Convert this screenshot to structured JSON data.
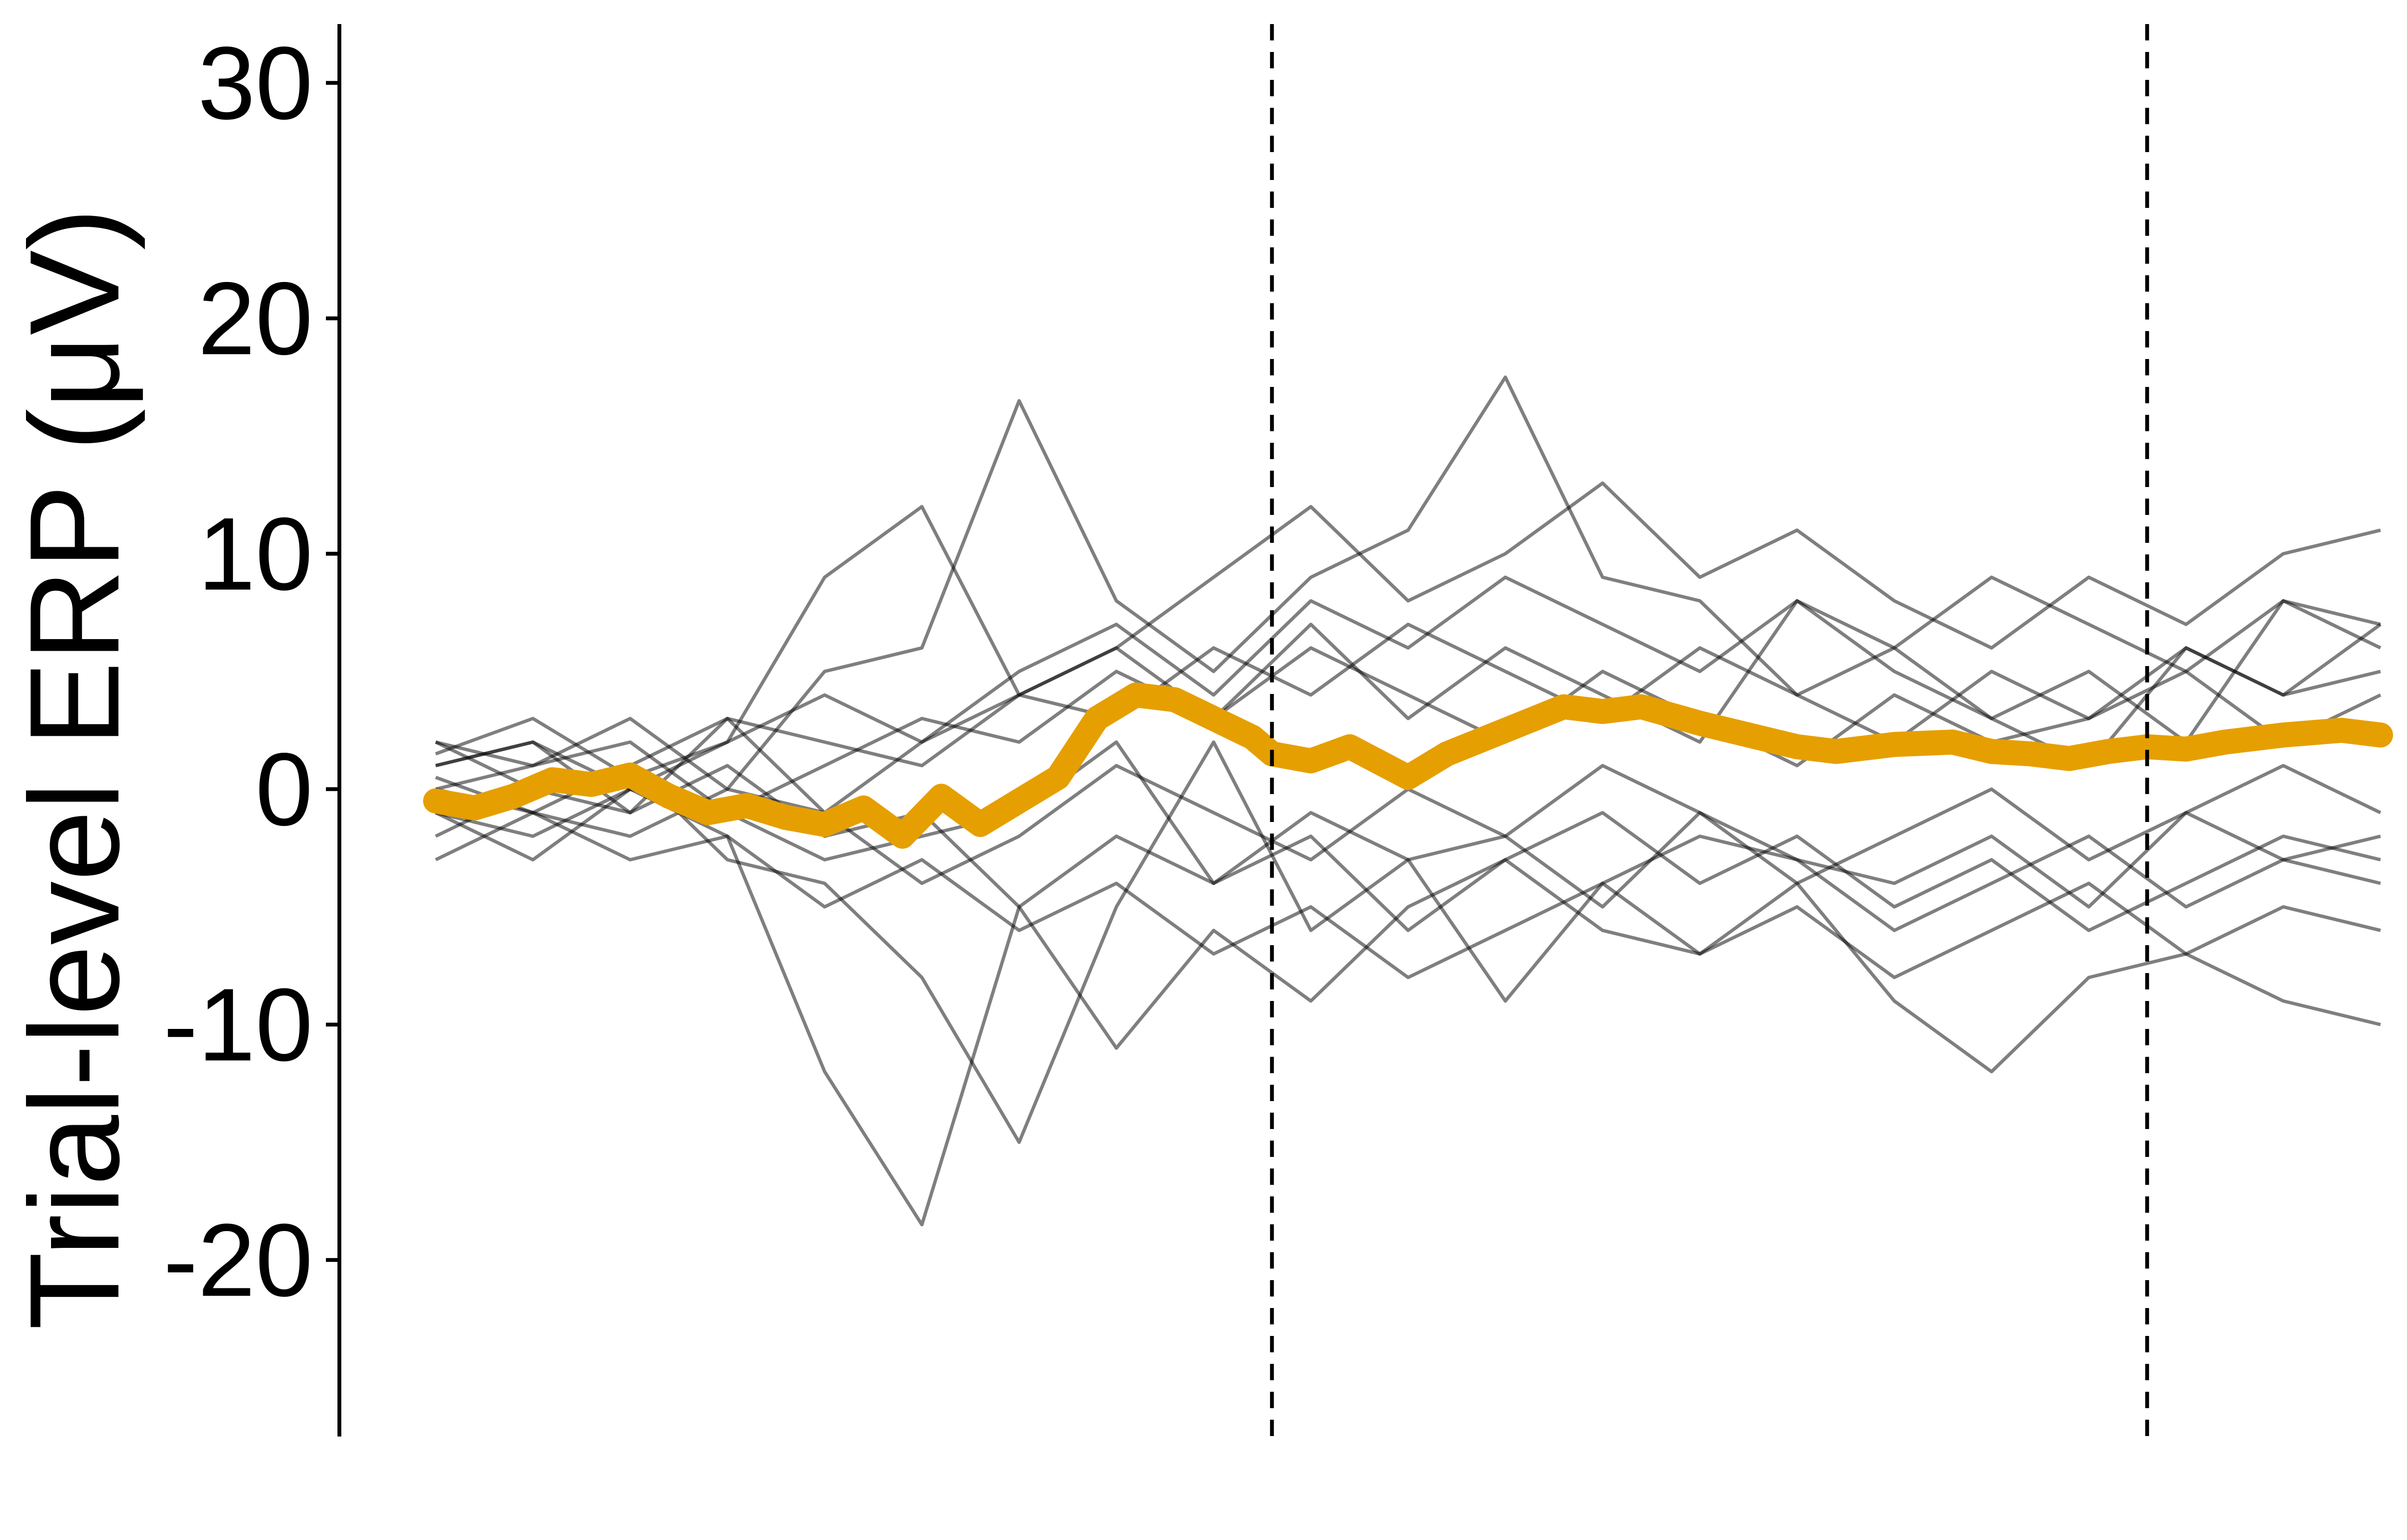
{
  "chart_data": {
    "type": "line",
    "title": "",
    "xlabel": "",
    "ylabel": "Trial-level ERP (μV)",
    "ylim": [
      -27.5,
      32.5
    ],
    "yticks": [
      30,
      20,
      10,
      0,
      -10,
      -20
    ],
    "ytick_labels": [
      "30",
      "20",
      "10",
      "0",
      "-10",
      "-20"
    ],
    "xlim": [
      0,
      100
    ],
    "vlines": [
      43,
      88
    ],
    "grid": false,
    "legend": "none",
    "colors": {
      "trials": "#000000",
      "mean": "#E69F00",
      "axis": "#000000"
    },
    "series": [
      {
        "role": "trial",
        "x": [
          0,
          5,
          10,
          15,
          20,
          25,
          30,
          35,
          40,
          45,
          50,
          55,
          60,
          65,
          70,
          75,
          80,
          85,
          90,
          95,
          100
        ],
        "values": [
          1.5,
          3,
          0.5,
          2,
          9,
          12,
          4,
          6,
          3,
          7,
          3,
          6,
          4,
          2,
          8,
          5,
          3,
          1,
          6,
          4,
          7
        ]
      },
      {
        "role": "trial",
        "x": [
          0,
          5,
          10,
          15,
          20,
          25,
          30,
          35,
          40,
          45,
          50,
          55,
          60,
          65,
          70,
          75,
          80,
          85,
          90,
          95,
          100
        ],
        "values": [
          -1,
          -3,
          0,
          -2,
          -12,
          -18.5,
          -5,
          -2,
          -4,
          -1,
          -3,
          -2,
          -5,
          -1,
          -3,
          -4,
          -2,
          -5,
          -1,
          -3,
          -2
        ]
      },
      {
        "role": "trial",
        "x": [
          0,
          5,
          10,
          15,
          20,
          25,
          30,
          35,
          40,
          45,
          50,
          55,
          60,
          65,
          70,
          75,
          80,
          85,
          90,
          95,
          100
        ],
        "values": [
          0.5,
          -1,
          1,
          -3,
          -4,
          -8,
          -15,
          -5,
          2,
          -6,
          -3,
          -9,
          -4,
          -2,
          -3,
          -6,
          -4,
          -2,
          -5,
          -3,
          -4
        ]
      },
      {
        "role": "trial",
        "x": [
          0,
          5,
          10,
          15,
          20,
          25,
          30,
          35,
          40,
          45,
          50,
          55,
          60,
          65,
          70,
          75,
          80,
          85,
          90,
          95,
          100
        ],
        "values": [
          2,
          1,
          3,
          0,
          5,
          6,
          16.5,
          8,
          5,
          9,
          11,
          17.5,
          9,
          8,
          4,
          6,
          3,
          5,
          2,
          8,
          6
        ]
      },
      {
        "role": "trial",
        "x": [
          0,
          5,
          10,
          15,
          20,
          25,
          30,
          35,
          40,
          45,
          50,
          55,
          60,
          65,
          70,
          75,
          80,
          85,
          90,
          95,
          100
        ],
        "values": [
          -2,
          0,
          -1,
          1,
          -2,
          -1,
          -5,
          -11,
          -6,
          -9,
          -5,
          -3,
          -6,
          -7,
          -4,
          -9,
          -12,
          -8,
          -7,
          -9,
          -10
        ]
      },
      {
        "role": "trial",
        "x": [
          0,
          5,
          10,
          15,
          20,
          25,
          30,
          35,
          40,
          45,
          50,
          55,
          60,
          65,
          70,
          75,
          80,
          85,
          90,
          95,
          100
        ],
        "values": [
          1,
          2,
          -1,
          3,
          2,
          1,
          4,
          6,
          9,
          12,
          8,
          10,
          13,
          9,
          11,
          8,
          6,
          9,
          7,
          10,
          11
        ]
      },
      {
        "role": "trial",
        "x": [
          0,
          5,
          10,
          15,
          20,
          25,
          30,
          35,
          40,
          45,
          50,
          55,
          60,
          65,
          70,
          75,
          80,
          85,
          90,
          95,
          100
        ],
        "values": [
          -1,
          -2,
          0,
          -1,
          -3,
          -2,
          -1,
          2,
          -4,
          -2,
          -6,
          -3,
          -1,
          -4,
          -2,
          -5,
          -3,
          -6,
          -4,
          -2,
          -3
        ]
      },
      {
        "role": "trial",
        "x": [
          0,
          5,
          10,
          15,
          20,
          25,
          30,
          35,
          40,
          45,
          50,
          55,
          60,
          65,
          70,
          75,
          80,
          85,
          90,
          95,
          100
        ],
        "values": [
          0,
          1,
          2,
          -1,
          1,
          3,
          2,
          5,
          3,
          6,
          4,
          2,
          5,
          3,
          1,
          4,
          2,
          3,
          5,
          2,
          4
        ]
      },
      {
        "role": "trial",
        "x": [
          0,
          5,
          10,
          15,
          20,
          25,
          30,
          35,
          40,
          45,
          50,
          55,
          60,
          65,
          70,
          75,
          80,
          85,
          90,
          95,
          100
        ],
        "values": [
          -3,
          -1,
          -2,
          0,
          -1,
          -4,
          -2,
          1,
          -1,
          -3,
          0,
          -2,
          1,
          -1,
          -4,
          -2,
          0,
          -3,
          -1,
          1,
          -1
        ]
      },
      {
        "role": "trial",
        "x": [
          0,
          5,
          10,
          15,
          20,
          25,
          30,
          35,
          40,
          45,
          50,
          55,
          60,
          65,
          70,
          75,
          80,
          85,
          90,
          95,
          100
        ],
        "values": [
          2,
          0,
          1,
          3,
          -1,
          2,
          4,
          3,
          6,
          4,
          7,
          5,
          3,
          6,
          4,
          2,
          5,
          3,
          6,
          4,
          5
        ]
      },
      {
        "role": "trial",
        "x": [
          0,
          5,
          10,
          15,
          20,
          25,
          30,
          35,
          40,
          45,
          50,
          55,
          60,
          65,
          70,
          75,
          80,
          85,
          90,
          95,
          100
        ],
        "values": [
          0,
          -1,
          -3,
          -2,
          -5,
          -3,
          -6,
          -4,
          -7,
          -5,
          -8,
          -6,
          -4,
          -7,
          -5,
          -8,
          -6,
          -4,
          -7,
          -5,
          -6
        ]
      },
      {
        "role": "trial",
        "x": [
          0,
          5,
          10,
          15,
          20,
          25,
          30,
          35,
          40,
          45,
          50,
          55,
          60,
          65,
          70,
          75,
          80,
          85,
          90,
          95,
          100
        ],
        "values": [
          1,
          2,
          0,
          2,
          4,
          2,
          5,
          7,
          4,
          8,
          6,
          9,
          7,
          5,
          8,
          6,
          9,
          7,
          5,
          8,
          7
        ]
      },
      {
        "role": "mean",
        "x": [
          0,
          2,
          4,
          6,
          8,
          10,
          12,
          14,
          16,
          18,
          20,
          22,
          24,
          26,
          28,
          30,
          32,
          34,
          36,
          38,
          40,
          42,
          43,
          45,
          47,
          50,
          52,
          55,
          58,
          60,
          62,
          65,
          68,
          70,
          72,
          75,
          78,
          80,
          82,
          84,
          86,
          88,
          90,
          92,
          95,
          98,
          100
        ],
        "values": [
          -0.5,
          -0.8,
          -0.3,
          0.4,
          0.2,
          0.6,
          -0.3,
          -1,
          -0.7,
          -1.2,
          -1.5,
          -0.8,
          -2,
          -0.3,
          -1.5,
          -0.5,
          0.5,
          3,
          4,
          3.8,
          3,
          2.2,
          1.5,
          1.2,
          1.8,
          0.5,
          1.5,
          2.5,
          3.5,
          3.3,
          3.5,
          2.8,
          2.2,
          1.8,
          1.6,
          1.9,
          2,
          1.6,
          1.5,
          1.3,
          1.6,
          1.8,
          1.7,
          2,
          2.3,
          2.5,
          2.3
        ]
      }
    ]
  }
}
